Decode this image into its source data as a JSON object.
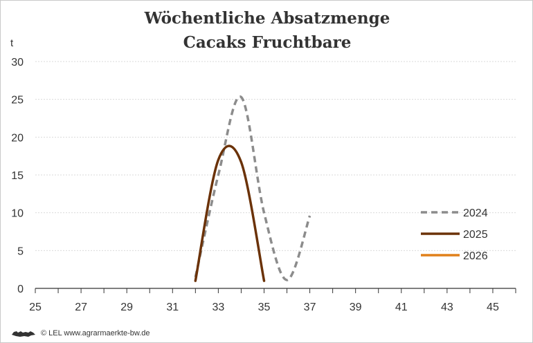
{
  "chart_data": {
    "type": "line",
    "title": "Wöchentliche Absatzmenge",
    "subtitle": "Cacaks Fruchtbare",
    "ylabel": "t",
    "xlabel": "",
    "xlim": [
      25,
      46
    ],
    "ylim": [
      0,
      30
    ],
    "x_ticks": [
      25,
      27,
      29,
      31,
      33,
      35,
      37,
      39,
      41,
      43,
      45
    ],
    "y_ticks": [
      0,
      5,
      10,
      15,
      20,
      25,
      30
    ],
    "grid": true,
    "legend_position": "right",
    "series": [
      {
        "name": "2024",
        "color": "#8c8c8c",
        "style": "dashed",
        "points": [
          [
            32,
            1.5
          ],
          [
            33,
            15
          ],
          [
            34,
            25.3
          ],
          [
            35,
            10
          ],
          [
            36,
            1.1
          ],
          [
            37,
            9.6
          ]
        ]
      },
      {
        "name": "2025",
        "color": "#6b3208",
        "style": "solid",
        "points": [
          [
            32,
            1.0
          ],
          [
            33,
            17.0
          ],
          [
            34,
            16.7
          ],
          [
            35,
            1.0
          ]
        ]
      },
      {
        "name": "2026",
        "color": "#e0801a",
        "style": "solid",
        "points": []
      }
    ]
  },
  "footer": {
    "credit": "© LEL www.agrarmaerkte-bw.de",
    "logo_icon": "lion-logo-icon"
  }
}
